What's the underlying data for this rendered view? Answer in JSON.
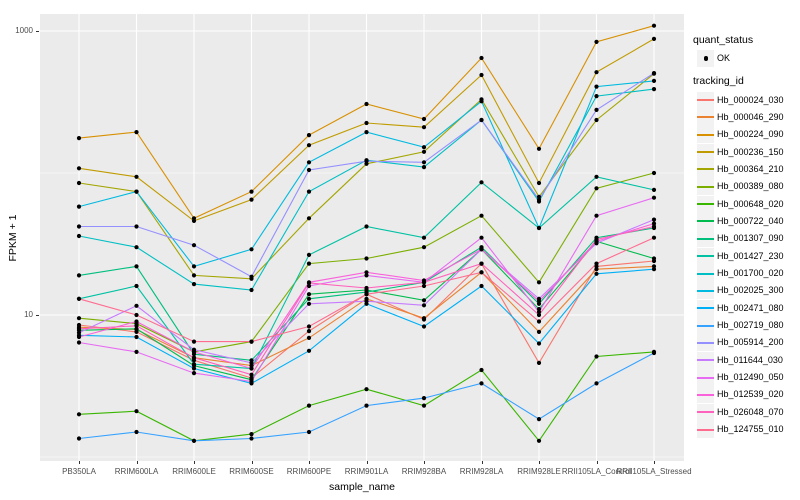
{
  "figure": {
    "background": "#FFFFFF",
    "panel_background": "#EBEBEB",
    "gridline_color": "#FFFFFF",
    "point_color": "#000000"
  },
  "axes": {
    "y_title": "FPKM + 1",
    "x_title": "sample_name",
    "y_tick_labels": [
      "1000",
      "10"
    ]
  },
  "legend": {
    "quant_status_title": "quant_status",
    "quant_status_ok_label": "OK",
    "tracking_id_title": "tracking_id"
  },
  "chart_data": {
    "type": "line",
    "title": "",
    "xlabel": "sample_name",
    "ylabel": "FPKM + 1",
    "y_scale": "log10",
    "ylim": [
      0.94,
      1320
    ],
    "grid": true,
    "legend_position": "right",
    "point_shape": "filled-circle",
    "point_legend": {
      "title": "quant_status",
      "value": "OK"
    },
    "y_ticks": [
      {
        "value": 10,
        "label": "10"
      },
      {
        "value": 1000,
        "label": "1000"
      }
    ],
    "y_minor_ticks": [
      1,
      100
    ],
    "x_categories": [
      "PB350LA",
      "RRIM600LA",
      "RRIM600LE",
      "RRIM600SE",
      "RRIM600PE",
      "RRIM901LA",
      "RRIM928BA",
      "RRIM928LA",
      "RRIM928LE",
      "RRII105LA_Control",
      "RRII105LA_Stressed"
    ],
    "series": [
      {
        "name": "Hb_000024_030",
        "color": "#F8766D",
        "values": [
          8.5,
          7.6,
          4.8,
          3.6,
          7.7,
          14,
          9.3,
          23,
          4.6,
          22,
          24
        ]
      },
      {
        "name": "Hb_000046_290",
        "color": "#EA8331",
        "values": [
          8.2,
          7.9,
          5.0,
          4.4,
          6.9,
          13,
          9.5,
          20,
          7.6,
          21,
          22
        ]
      },
      {
        "name": "Hb_000224_090",
        "color": "#D89000",
        "values": [
          176,
          194,
          48,
          74,
          185,
          306,
          240,
          645,
          148,
          838,
          1090
        ]
      },
      {
        "name": "Hb_000236_150",
        "color": "#C09B00",
        "values": [
          108,
          94,
          46,
          65,
          157,
          225,
          210,
          490,
          85,
          513,
          880
        ]
      },
      {
        "name": "Hb_000364_210",
        "color": "#A3A500",
        "values": [
          85,
          74,
          19,
          18,
          48,
          116,
          141,
          330,
          68,
          236,
          500
        ]
      },
      {
        "name": "Hb_000389_080",
        "color": "#7CAE00",
        "values": [
          9.5,
          8.7,
          5.5,
          6.5,
          23,
          25,
          30,
          50,
          17,
          78,
          100
        ]
      },
      {
        "name": "Hb_000648_020",
        "color": "#39B600",
        "values": [
          2.0,
          2.1,
          1.3,
          1.45,
          2.3,
          3.0,
          2.3,
          4.1,
          1.3,
          5.1,
          5.5
        ]
      },
      {
        "name": "Hb_000722_040",
        "color": "#00BB4E",
        "values": [
          7.8,
          8.0,
          4.4,
          3.5,
          14,
          15,
          12.7,
          29,
          11,
          33,
          25
        ]
      },
      {
        "name": "Hb_001307_090",
        "color": "#00BF7D",
        "values": [
          19,
          22,
          5.3,
          4.8,
          13,
          14.5,
          17,
          30,
          12,
          35,
          41
        ]
      },
      {
        "name": "Hb_001427_230",
        "color": "#00C1A3",
        "values": [
          13,
          16,
          4.5,
          4.2,
          26.5,
          42,
          35,
          86,
          41,
          94,
          76
        ]
      },
      {
        "name": "Hb_001700_020",
        "color": "#00BFC4",
        "values": [
          36,
          30,
          16.5,
          15,
          74,
          123,
          110,
          236,
          63,
          348,
          390
        ]
      },
      {
        "name": "Hb_002025_300",
        "color": "#00BAE0",
        "values": [
          58,
          74,
          22,
          29,
          119,
          194,
          152,
          320,
          41,
          406,
          445
        ]
      },
      {
        "name": "Hb_002471_080",
        "color": "#00B0F6",
        "values": [
          7.2,
          7.0,
          4.2,
          3.3,
          5.6,
          12,
          8.3,
          16,
          6.3,
          19.5,
          21
        ]
      },
      {
        "name": "Hb_002719_080",
        "color": "#35A2FF",
        "values": [
          1.35,
          1.5,
          1.3,
          1.35,
          1.5,
          2.3,
          2.6,
          3.3,
          1.85,
          3.3,
          5.4
        ]
      },
      {
        "name": "Hb_005914_200",
        "color": "#9590FF",
        "values": [
          42,
          42,
          31,
          18.6,
          105,
          121,
          119,
          236,
          65,
          278,
          505
        ]
      },
      {
        "name": "Hb_011644_030",
        "color": "#C77CFF",
        "values": [
          7.5,
          11.6,
          5.7,
          4.6,
          12,
          12.5,
          11.7,
          29,
          13,
          32,
          47
        ]
      },
      {
        "name": "Hb_012490_050",
        "color": "#E76BF3",
        "values": [
          6.4,
          5.5,
          3.9,
          3.4,
          16,
          19,
          17,
          35,
          10.5,
          50,
          67
        ]
      },
      {
        "name": "Hb_012539_020",
        "color": "#FA62DB",
        "values": [
          7.0,
          9.0,
          5.5,
          4.2,
          17,
          20,
          17.5,
          29,
          12.5,
          33,
          44
        ]
      },
      {
        "name": "Hb_026048_070",
        "color": "#FF62BC",
        "values": [
          8.0,
          8.4,
          5.0,
          3.8,
          16.8,
          15.5,
          17,
          23,
          10,
          34,
          42
        ]
      },
      {
        "name": "Hb_124755_010",
        "color": "#FF6C90",
        "values": [
          13,
          10,
          6.5,
          6.5,
          8.3,
          14,
          16,
          20,
          9.0,
          23,
          35
        ]
      }
    ]
  }
}
